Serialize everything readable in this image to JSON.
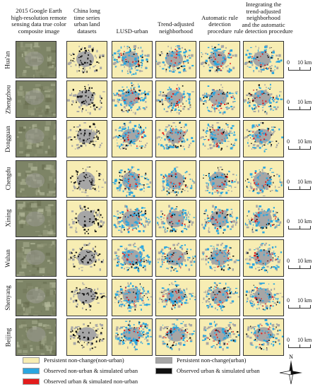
{
  "columns": [
    {
      "lines": [
        "2015 Google Earth",
        "high-resolution remote",
        "sensing data true color",
        "composite image"
      ]
    },
    {
      "lines": [
        "China long",
        "time series",
        "urban land",
        "datasets"
      ]
    },
    {
      "lines": [
        "",
        "",
        "",
        "LUSD-urban"
      ]
    },
    {
      "lines": [
        "",
        "",
        "Trend-adjusted",
        "neighborhood"
      ]
    },
    {
      "lines": [
        "",
        "Automatic rule",
        "detection",
        "procedure"
      ]
    },
    {
      "lines": [
        "Integrating the",
        "trend-adjusted",
        "neighborhood",
        "and the automatic",
        "rule detection procedure"
      ]
    }
  ],
  "cities": [
    {
      "name": "Hua'an",
      "scale_zero": "0",
      "scale_label": "10 km"
    },
    {
      "name": "Zhengzhou",
      "scale_zero": "0",
      "scale_label": "10 km"
    },
    {
      "name": "Dongguan",
      "scale_zero": "0",
      "scale_label": "10 km"
    },
    {
      "name": "Chengdu",
      "scale_zero": "0",
      "scale_label": "10 km"
    },
    {
      "name": "Xining",
      "scale_zero": "0",
      "scale_label": "10 km"
    },
    {
      "name": "Wuhan",
      "scale_zero": "0",
      "scale_label": "10 km"
    },
    {
      "name": "Shenyang",
      "scale_zero": "0",
      "scale_label": "10 km"
    },
    {
      "name": "Beijing",
      "scale_zero": "0",
      "scale_label": "10 km"
    }
  ],
  "legend": [
    {
      "label": "Persistent non-change(non-urban)",
      "color": "#f7edb3"
    },
    {
      "label": "Persistent non-change(urban)",
      "color": "#a6a6a6"
    },
    {
      "label": "Observed non-urban & simulated urban",
      "color": "#2aa6e0"
    },
    {
      "label": "Observed urban & simulated urban",
      "color": "#111111"
    },
    {
      "label": "Observed urban & simulated non-urban",
      "color": "#e31c1c"
    }
  ],
  "north_label": "N",
  "colors": {
    "non_urban": "#f7edb3",
    "urban": "#a6a6a6",
    "sim_urban": "#2aa6e0",
    "both_urban": "#111111",
    "missed": "#e31c1c",
    "satellite": "#7d8466"
  }
}
